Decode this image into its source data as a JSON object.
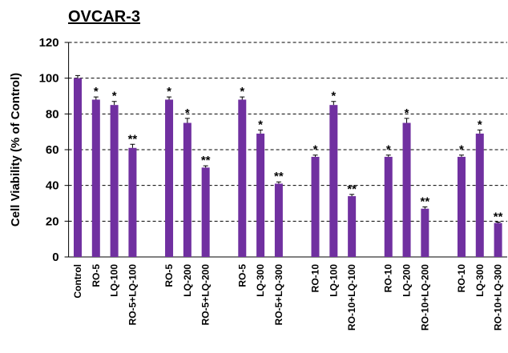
{
  "chart_data": {
    "type": "bar",
    "title": "OVCAR-3",
    "ylabel": "Cell Viability (% of Control)",
    "categories": [
      "Control",
      "RO-5",
      "LQ-100",
      "RO-5+LQ-100",
      null,
      "RO-5",
      "LQ-200",
      "RO-5+LQ-200",
      null,
      "RO-5",
      "LQ-300",
      "RO-5+LQ-300",
      null,
      "RO-10",
      "LQ-100",
      "RO-10+LQ-100",
      null,
      "RO-10",
      "LQ-200",
      "RO-10+LQ-200",
      null,
      "RO-10",
      "LQ-300",
      "RO-10+LQ-300"
    ],
    "values": [
      100,
      88,
      85,
      61,
      null,
      88,
      75,
      50,
      null,
      88,
      69,
      41,
      null,
      56,
      85,
      34,
      null,
      56,
      75,
      27,
      null,
      56,
      69,
      19
    ],
    "errors": [
      1.5,
      1.5,
      2,
      2,
      null,
      1.5,
      2.5,
      1,
      null,
      1.5,
      2,
      1,
      null,
      1,
      2,
      1,
      null,
      1,
      2.5,
      1,
      null,
      1,
      2,
      0.5
    ],
    "annotations": [
      null,
      "*",
      "*",
      "**",
      null,
      "*",
      "*",
      "**",
      null,
      "*",
      "*",
      "**",
      null,
      "*",
      "*",
      "**",
      null,
      "*",
      "*",
      "**",
      null,
      "*",
      "*",
      "**"
    ],
    "color": "#7030a0",
    "ylim": [
      0,
      120
    ],
    "yticks": [
      0,
      20,
      40,
      60,
      80,
      100,
      120
    ],
    "grid": true
  }
}
